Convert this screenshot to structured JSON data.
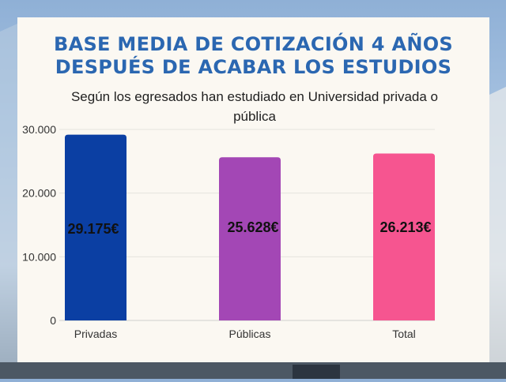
{
  "title": "BASE MEDIA DE COTIZACIÓN 4 AÑOS DESPUÉS DE ACABAR LOS ESTUDIOS",
  "subtitle": "Según los egresados han estudiado en Universidad privada o pública",
  "colors": {
    "title": "#2b67b1",
    "card_background": "#fbf8f2",
    "bars": [
      "#0b3fa3",
      "#a347b5",
      "#f65590"
    ]
  },
  "chart_data": {
    "type": "bar",
    "title": "BASE MEDIA DE COTIZACIÓN 4 AÑOS DESPUÉS DE ACABAR LOS ESTUDIOS",
    "subtitle": "Según los egresados han estudiado en Universidad privada o pública",
    "categories": [
      "Privadas",
      "Públicas",
      "Total"
    ],
    "values": [
      29175,
      25628,
      26213
    ],
    "data_labels": [
      "29.175€",
      "25.628€",
      "26.213€"
    ],
    "xlabel": "",
    "ylabel": "",
    "ylim": [
      0,
      30000
    ],
    "yticks": [
      0,
      10000,
      20000,
      30000
    ],
    "ytick_labels": [
      "0",
      "10.000",
      "20.000",
      "30.000"
    ],
    "grid": true,
    "legend": "none"
  }
}
